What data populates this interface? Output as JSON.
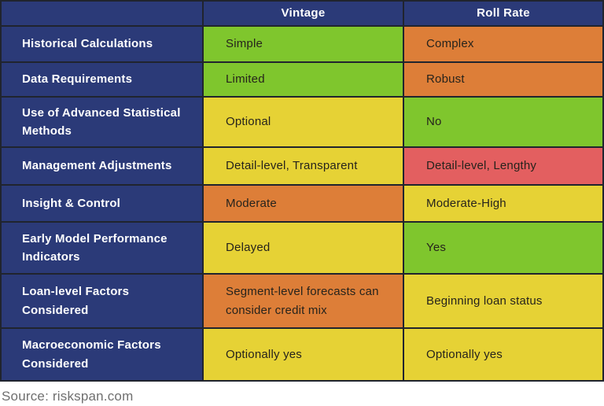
{
  "colors": {
    "navy": "#2b3a78",
    "border": "#20242e",
    "green": "#7fc62d",
    "yellow": "#e6d235",
    "orange": "#dd7e38",
    "red": "#e35f60",
    "header_text": "#ffffff",
    "cell_text": "#26231c",
    "source_text": "#6f6f6f"
  },
  "table": {
    "header": {
      "row_label_column": "",
      "vintage": "Vintage",
      "roll_rate": "Roll Rate"
    },
    "rows": [
      {
        "label": "Historical Calculations",
        "vintage": {
          "text": "Simple",
          "color": "green"
        },
        "roll_rate": {
          "text": "Complex",
          "color": "orange"
        }
      },
      {
        "label": "Data Requirements",
        "vintage": {
          "text": "Limited",
          "color": "green"
        },
        "roll_rate": {
          "text": "Robust",
          "color": "orange"
        }
      },
      {
        "label": "Use of Advanced Statistical Methods",
        "vintage": {
          "text": "Optional",
          "color": "yellow"
        },
        "roll_rate": {
          "text": "No",
          "color": "green"
        }
      },
      {
        "label": "Management Adjustments",
        "vintage": {
          "text": "Detail-level, Transparent",
          "color": "yellow"
        },
        "roll_rate": {
          "text": "Detail-level, Lengthy",
          "color": "red"
        }
      },
      {
        "label": "Insight & Control",
        "vintage": {
          "text": "Moderate",
          "color": "orange"
        },
        "roll_rate": {
          "text": "Moderate-High",
          "color": "yellow"
        }
      },
      {
        "label": "Early Model Performance Indicators",
        "vintage": {
          "text": "Delayed",
          "color": "yellow"
        },
        "roll_rate": {
          "text": "Yes",
          "color": "green"
        }
      },
      {
        "label": "Loan-level Factors Considered",
        "vintage": {
          "text": "Segment-level forecasts can consider credit mix",
          "color": "orange"
        },
        "roll_rate": {
          "text": "Beginning loan status",
          "color": "yellow"
        }
      },
      {
        "label": "Macroeconomic Factors Considered",
        "vintage": {
          "text": "Optionally yes",
          "color": "yellow"
        },
        "roll_rate": {
          "text": "Optionally yes",
          "color": "yellow"
        }
      }
    ]
  },
  "footer": {
    "source": "Source: riskspan.com"
  }
}
